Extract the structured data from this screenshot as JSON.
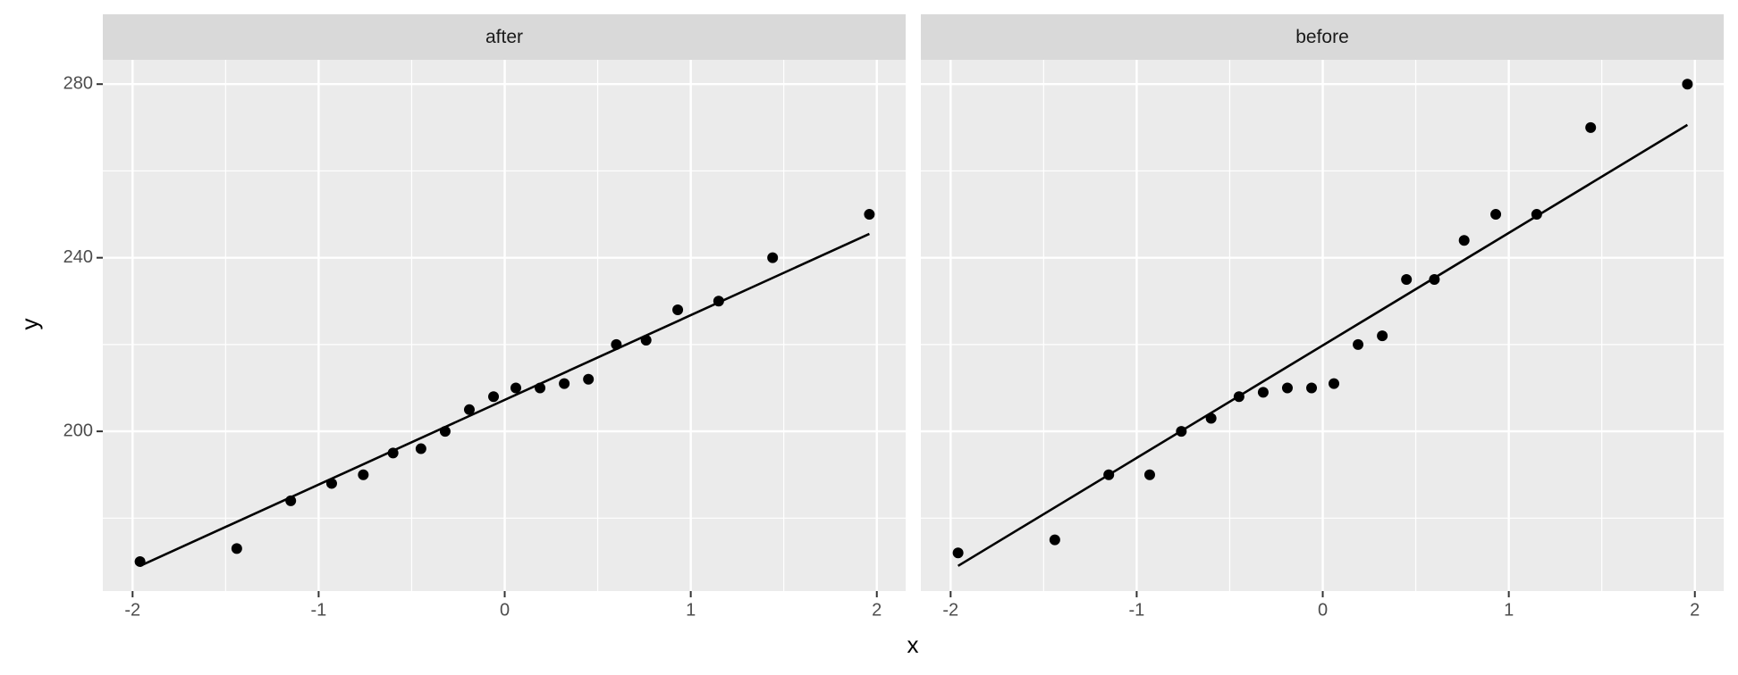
{
  "chart_data": {
    "type": "scatter",
    "xlabel": "x",
    "ylabel": "y",
    "color": "#000000",
    "grid": true,
    "xlim": [
      -2.16,
      2.155
    ],
    "ylim": [
      163.2,
      285.6
    ],
    "xticks": [
      -2,
      -1,
      0,
      1,
      2
    ],
    "yticks": [
      200,
      240,
      280
    ],
    "minor_xticks": [
      -1.5,
      -0.5,
      0.5,
      1.5
    ],
    "minor_yticks": [
      180,
      220,
      260
    ],
    "facets": [
      {
        "title": "after",
        "x": [
          -1.96,
          -1.44,
          -1.15,
          -0.93,
          -0.76,
          -0.6,
          -0.45,
          -0.32,
          -0.19,
          -0.06,
          0.06,
          0.19,
          0.32,
          0.45,
          0.6,
          0.76,
          0.93,
          1.15,
          1.44,
          1.96
        ],
        "y": [
          170,
          173,
          184,
          188,
          190,
          195,
          196,
          200,
          205,
          208,
          210,
          210,
          211,
          212,
          220,
          221,
          228,
          230,
          240,
          250
        ],
        "line": {
          "x": [
            -1.96,
            1.96
          ],
          "y": [
            169,
            245.5
          ]
        }
      },
      {
        "title": "before",
        "x": [
          -1.96,
          -1.44,
          -1.15,
          -0.93,
          -0.76,
          -0.6,
          -0.45,
          -0.32,
          -0.19,
          -0.06,
          0.06,
          0.19,
          0.32,
          0.45,
          0.6,
          0.76,
          0.93,
          1.15,
          1.44,
          1.96
        ],
        "y": [
          172,
          175,
          190,
          190,
          200,
          203,
          208,
          209,
          210,
          210,
          211,
          220,
          222,
          235,
          235,
          244,
          250,
          250,
          270,
          280
        ],
        "line": {
          "x": [
            -1.96,
            1.96
          ],
          "y": [
            169,
            270.6
          ]
        }
      }
    ]
  }
}
